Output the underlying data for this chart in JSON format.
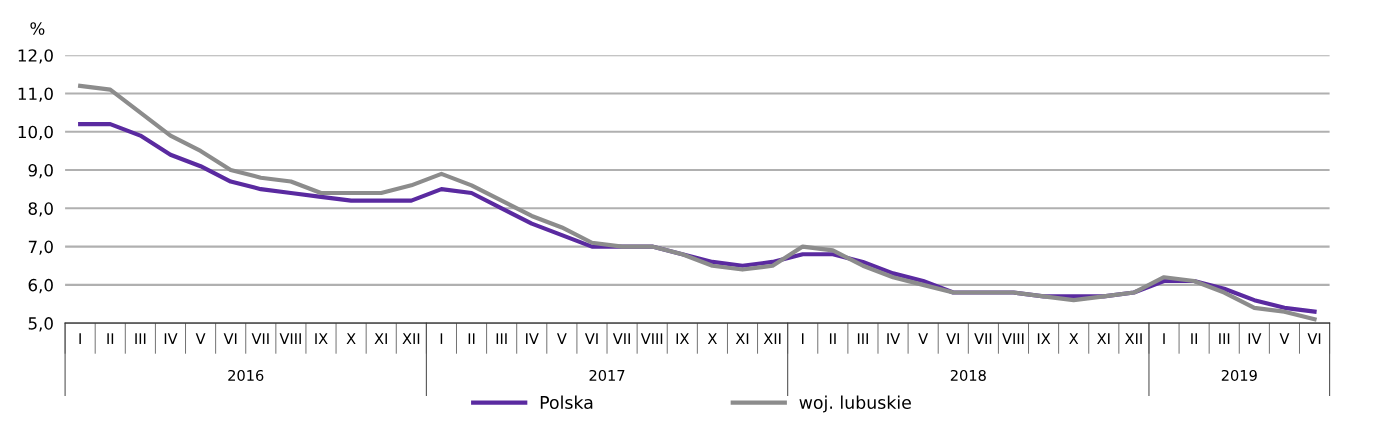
{
  "chart_data": {
    "type": "line",
    "ylabel": "%",
    "categories": [
      "I",
      "II",
      "III",
      "IV",
      "V",
      "VI",
      "VII",
      "VIII",
      "IX",
      "X",
      "XI",
      "XII",
      "I",
      "II",
      "III",
      "IV",
      "V",
      "VI",
      "VII",
      "VIII",
      "IX",
      "X",
      "XI",
      "XII",
      "I",
      "II",
      "III",
      "IV",
      "V",
      "VI",
      "VII",
      "VIII",
      "IX",
      "X",
      "XI",
      "XII",
      "I",
      "II",
      "III",
      "IV",
      "V",
      "VI"
    ],
    "annotations": [
      "2016",
      "2017",
      "2018",
      "2019"
    ],
    "series": [
      {
        "name": "Polska",
        "color": "#5a2aa0",
        "values": [
          10.2,
          10.2,
          9.9,
          9.4,
          9.1,
          8.7,
          8.5,
          8.4,
          8.3,
          8.2,
          8.2,
          8.2,
          8.5,
          8.4,
          8.0,
          7.6,
          7.3,
          7.0,
          7.0,
          7.0,
          6.8,
          6.6,
          6.5,
          6.6,
          6.8,
          6.8,
          6.6,
          6.3,
          6.1,
          5.8,
          5.8,
          5.8,
          5.7,
          5.7,
          5.7,
          5.8,
          6.1,
          6.1,
          5.9,
          5.6,
          5.4,
          5.3
        ]
      },
      {
        "name": "woj. lubuskie",
        "color": "#8c8c8c",
        "values": [
          11.2,
          11.1,
          10.5,
          9.9,
          9.5,
          9.0,
          8.8,
          8.7,
          8.4,
          8.4,
          8.4,
          8.6,
          8.9,
          8.6,
          8.2,
          7.8,
          7.5,
          7.1,
          7.0,
          7.0,
          6.8,
          6.5,
          6.4,
          6.5,
          7.0,
          6.9,
          6.5,
          6.2,
          6.0,
          5.8,
          5.8,
          5.8,
          5.7,
          5.6,
          5.7,
          5.8,
          6.2,
          6.1,
          5.8,
          5.4,
          5.3,
          5.1
        ]
      }
    ],
    "ylim": [
      5,
      12
    ],
    "yticks": [
      {
        "value": 5,
        "label": "5,0"
      },
      {
        "value": 6,
        "label": "6,0"
      },
      {
        "value": 7,
        "label": "7,0"
      },
      {
        "value": 8,
        "label": "8,0"
      },
      {
        "value": 9,
        "label": "9,0"
      },
      {
        "value": 10,
        "label": "10,0"
      },
      {
        "value": 11,
        "label": "11,0"
      },
      {
        "value": 12,
        "label": "12,0"
      }
    ],
    "grid": "y",
    "legend": "bottom",
    "marker": "none",
    "line_style": "solid"
  }
}
